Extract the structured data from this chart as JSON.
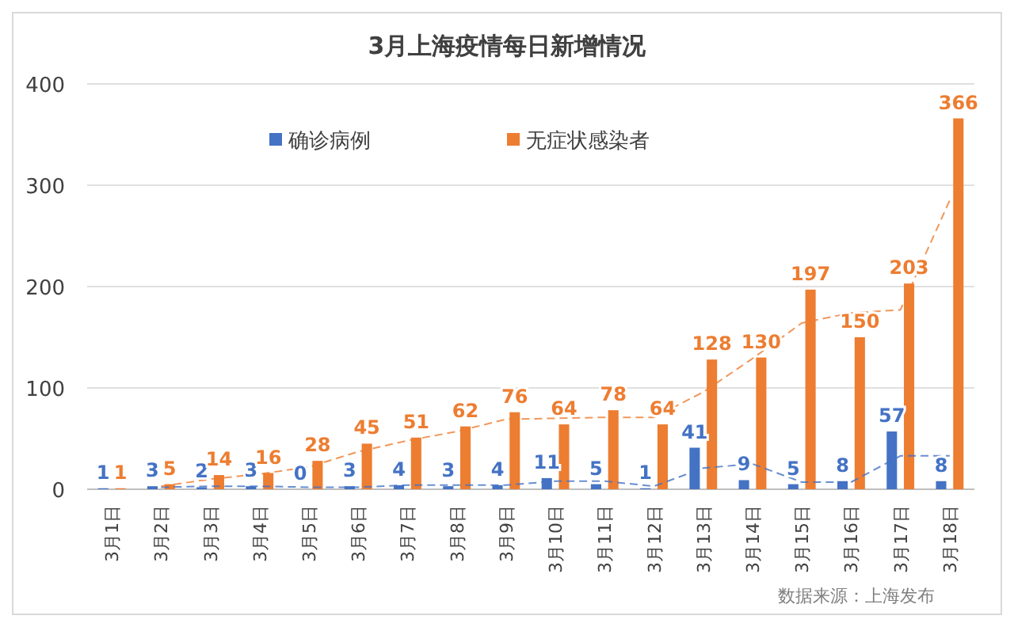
{
  "chart_data": {
    "type": "bar",
    "title": "3月上海疫情每日新增情况",
    "categories": [
      "3月1日",
      "3月2日",
      "3月3日",
      "3月4日",
      "3月5日",
      "3月6日",
      "3月7日",
      "3月8日",
      "3月9日",
      "3月10日",
      "3月11日",
      "3月12日",
      "3月13日",
      "3月14日",
      "3月15日",
      "3月16日",
      "3月17日",
      "3月18日"
    ],
    "series": [
      {
        "name": "确诊病例",
        "color": "#4472c4",
        "values": [
          1,
          3,
          2,
          3,
          0,
          3,
          4,
          3,
          4,
          11,
          5,
          1,
          41,
          9,
          5,
          8,
          57,
          8
        ],
        "value_labels": [
          "1",
          "3",
          "2",
          "3",
          "0",
          "3",
          "4",
          "3",
          "4",
          "11",
          "5",
          "1",
          "41",
          "9",
          "5",
          "8",
          "57",
          "8"
        ]
      },
      {
        "name": "无症状感染者",
        "color": "#ed7d31",
        "values": [
          1,
          5,
          14,
          16,
          28,
          45,
          51,
          62,
          76,
          64,
          78,
          64,
          128,
          130,
          197,
          150,
          203,
          366
        ],
        "value_labels": [
          "1",
          "5",
          "14",
          "16",
          "28",
          "45",
          "51",
          "62",
          "76",
          "64",
          "78",
          "64",
          "128",
          "130",
          "197",
          "150",
          "203",
          "366"
        ]
      },
      {
        "type": "line",
        "color": "#4472c4",
        "line_style": "dashed",
        "x": [
          "3月2日",
          "3月3日",
          "3月4日",
          "3月5日",
          "3月6日",
          "3月7日",
          "3月8日",
          "3月9日",
          "3月10日",
          "3月11日",
          "3月12日",
          "3月13日",
          "3月14日",
          "3月15日",
          "3月16日",
          "3月17日",
          "3月18日"
        ],
        "values": [
          2,
          3,
          3,
          2,
          2,
          4,
          4,
          4,
          8,
          8,
          3,
          21,
          25,
          7,
          7,
          33,
          33
        ]
      },
      {
        "type": "line",
        "color": "#ed7d31",
        "line_style": "dashed",
        "x": [
          "3月2日",
          "3月3日",
          "3月4日",
          "3月5日",
          "3月6日",
          "3月7日",
          "3月8日",
          "3月9日",
          "3月10日",
          "3月11日",
          "3月12日",
          "3月13日",
          "3月14日",
          "3月15日",
          "3月16日",
          "3月17日",
          "3月18日"
        ],
        "values": [
          3,
          10,
          15,
          22,
          37,
          48,
          57,
          69,
          70,
          71,
          71,
          96,
          129,
          164,
          174,
          177,
          285
        ]
      }
    ],
    "ylim": [
      0,
      400
    ],
    "yticks": [
      0,
      100,
      200,
      300,
      400
    ],
    "grid": "y",
    "legend": "top",
    "annotations": [
      "数据来源：上海发布"
    ]
  }
}
